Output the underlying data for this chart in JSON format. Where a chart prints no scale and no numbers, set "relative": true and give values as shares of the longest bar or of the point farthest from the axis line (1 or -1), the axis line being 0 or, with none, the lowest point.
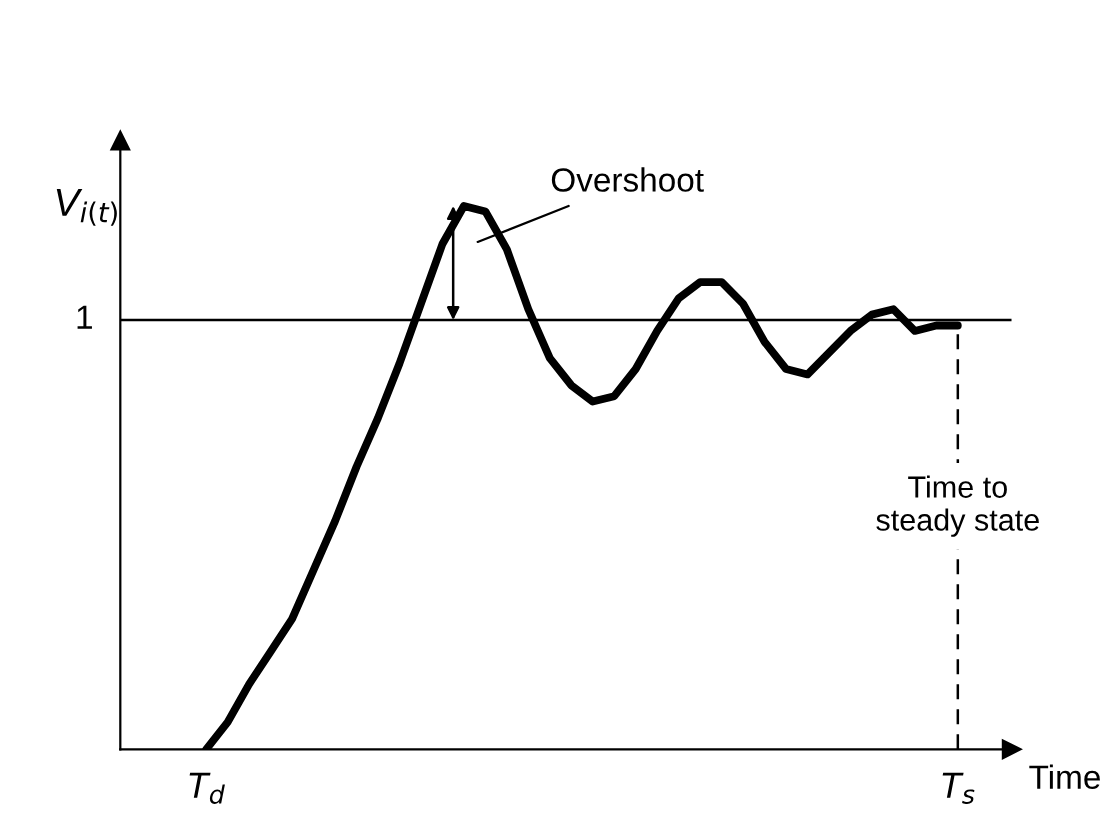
{
  "chart_data": {
    "type": "line",
    "relative": true,
    "xlabel": "Time",
    "ylabel": "V$_{i(t)}$",
    "categories": [
      "T$_{d}$",
      null,
      null,
      null,
      null,
      null,
      null,
      null,
      null,
      null,
      null,
      null,
      null,
      null,
      null,
      null,
      null,
      null,
      null,
      null,
      null,
      null,
      null,
      null,
      null,
      null,
      null,
      null,
      null,
      null,
      null,
      null,
      null,
      null,
      null,
      "T$_{s}$"
    ],
    "tick_labels": "x",
    "grid": false,
    "marker": "none",
    "line_style": "solid",
    "series": [
      {
        "color": "#000000",
        "values": [
          0,
          0.05,
          0.12,
          0.18,
          0.24,
          0.33,
          0.42,
          0.52,
          0.61,
          0.71,
          0.82,
          0.93,
          1.0,
          0.99,
          0.92,
          0.81,
          0.72,
          0.67,
          0.64,
          0.65,
          0.7,
          0.77,
          0.83,
          0.86,
          0.86,
          0.82,
          0.75,
          0.7,
          0.69,
          0.73,
          0.77,
          0.8,
          0.81,
          0.77,
          0.78,
          0.78
        ]
      }
    ],
    "ref_lines": [
      {
        "axis": "y",
        "value": 0.79,
        "label": "1",
        "color": "#000000",
        "line_style": "solid"
      },
      {
        "axis": "x",
        "value": "T$_{s}$",
        "label": "Time to\nsteady state",
        "color": "#000000",
        "line_style": "dashed"
      }
    ],
    "annotations": [
      "Overshoot"
    ]
  }
}
